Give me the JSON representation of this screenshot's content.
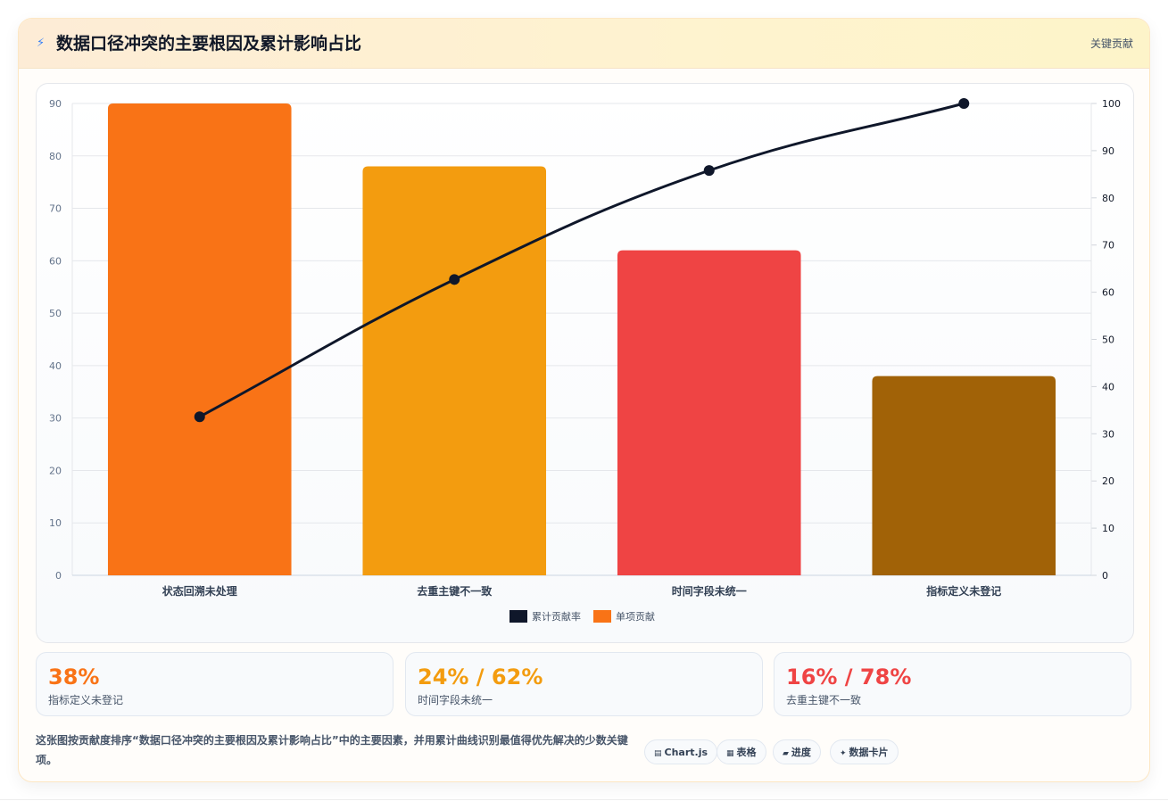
{
  "header": {
    "icon": "⚡",
    "icon_name": "lightning-icon",
    "title": "数据口径冲突的主要根因及累计影响占比",
    "badge": "关键贡献"
  },
  "chart_data": {
    "type": "bar",
    "categories": [
      "状态回溯未处理",
      "去重主键不一致",
      "时间字段未统一",
      "指标定义未登记"
    ],
    "series": [
      {
        "name": "单项贡献",
        "type": "bar",
        "axis": "left",
        "values": [
          90,
          78,
          62,
          38
        ],
        "colors": [
          "#f97316",
          "#f39c0f",
          "#ef4444",
          "#a16207"
        ]
      },
      {
        "name": "累计贡献率",
        "type": "line",
        "axis": "right",
        "values": [
          33.6,
          62.7,
          85.8,
          100
        ],
        "color": "#0f172a"
      }
    ],
    "ylim_left": [
      0,
      90
    ],
    "yticks_left": [
      0,
      10,
      20,
      30,
      40,
      50,
      60,
      70,
      80,
      90
    ],
    "ylim_right": [
      0,
      100
    ],
    "yticks_right": [
      0,
      10,
      20,
      30,
      40,
      50,
      60,
      70,
      80,
      90,
      100
    ],
    "grid": true,
    "legend_position": "bottom",
    "legend": [
      {
        "label": "累计贡献率",
        "color": "#0f172a"
      },
      {
        "label": "单项贡献",
        "color": "#f97316"
      }
    ]
  },
  "stats": [
    {
      "value": "38%",
      "label": "指标定义未登记",
      "color": "#f97316"
    },
    {
      "value": "24% / 62%",
      "label": "时间字段未统一",
      "color": "#f39c0f"
    },
    {
      "value": "16% / 78%",
      "label": "去重主键不一致",
      "color": "#ef4444"
    }
  ],
  "footer": {
    "description": "这张图按贡献度排序“数据口径冲突的主要根因及累计影响占比”中的主要因素，并用累计曲线识别最值得优先解决的少数关键项。",
    "tags": [
      {
        "icon": "▤",
        "icon_name": "chart-icon",
        "label": "Chart.js"
      },
      {
        "icon": "▦",
        "icon_name": "table-icon",
        "label": "表格"
      },
      {
        "icon": "▰",
        "icon_name": "progress-icon",
        "label": "进度"
      },
      {
        "icon": "✦",
        "icon_name": "sparkle-icon",
        "label": "数据卡片"
      }
    ]
  }
}
